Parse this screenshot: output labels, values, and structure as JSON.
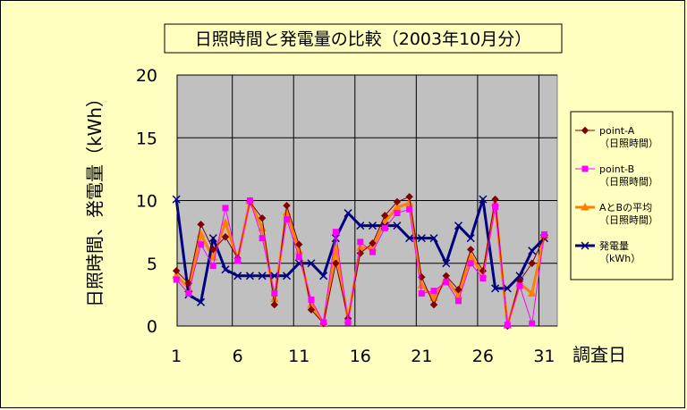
{
  "chart_data": {
    "type": "line",
    "title": "日照時間と発電量の比較（2003年10月分）",
    "ylabel": "日照時間、発電量（kWh）",
    "xlabel": "調査日",
    "ylim": [
      0,
      20
    ],
    "yticks": [
      0,
      5,
      10,
      15,
      20
    ],
    "xlim": [
      1,
      32
    ],
    "xticks": [
      1,
      6,
      11,
      16,
      21,
      26,
      31
    ],
    "grid": true,
    "legend_position": "right",
    "plot_background": "#c0c0c0",
    "x": [
      1,
      2,
      3,
      4,
      5,
      6,
      7,
      8,
      9,
      10,
      11,
      12,
      13,
      14,
      15,
      16,
      17,
      18,
      19,
      20,
      21,
      22,
      23,
      24,
      25,
      26,
      27,
      28,
      29,
      30,
      31
    ],
    "series": [
      {
        "name": "point-A",
        "name_line2": "（日照時間）",
        "color": "#800000",
        "marker": "diamond",
        "width": 1,
        "values": [
          4.4,
          3.4,
          8.1,
          6.1,
          7.1,
          5.4,
          9.9,
          8.6,
          1.7,
          9.6,
          6.5,
          1.3,
          0.2,
          5.0,
          0.6,
          5.8,
          6.6,
          8.8,
          9.9,
          10.3,
          3.9,
          1.7,
          4.0,
          2.9,
          6.1,
          4.4,
          10.1,
          0.0,
          3.6,
          5.0,
          7.1
        ]
      },
      {
        "name": "point-B",
        "name_line2": "（日照時間）",
        "color": "#ff00ff",
        "marker": "square",
        "width": 1,
        "values": [
          3.7,
          2.6,
          6.5,
          4.8,
          9.4,
          5.2,
          10.0,
          7.0,
          2.6,
          8.5,
          5.5,
          2.1,
          0.3,
          7.5,
          0.3,
          6.7,
          5.9,
          7.8,
          9.0,
          9.3,
          2.6,
          2.8,
          3.5,
          2.0,
          5.0,
          3.8,
          9.5,
          0.1,
          3.2,
          0.2,
          7.3
        ]
      },
      {
        "name": "AとBの平均",
        "name_line2": "（日照時間）",
        "color": "#ff8000",
        "marker": "triangle",
        "width": 3,
        "values": [
          4.05,
          3.0,
          7.3,
          5.45,
          8.25,
          5.3,
          9.95,
          7.8,
          2.15,
          9.05,
          6.0,
          1.7,
          0.25,
          6.25,
          0.45,
          6.25,
          6.25,
          8.3,
          9.45,
          9.8,
          3.25,
          2.25,
          3.75,
          2.45,
          5.55,
          4.1,
          9.8,
          0.05,
          3.4,
          2.6,
          7.2
        ]
      },
      {
        "name": "発電量",
        "name_line2": "（kWh）",
        "color": "#000080",
        "marker": "x",
        "width": 3,
        "values": [
          10.1,
          2.5,
          1.9,
          7.0,
          4.5,
          4.0,
          4.0,
          4.0,
          4.0,
          4.0,
          5.0,
          5.0,
          4.0,
          7.0,
          9.0,
          8.0,
          8.0,
          8.0,
          8.0,
          7.0,
          7.0,
          7.0,
          5.0,
          8.0,
          7.0,
          10.1,
          3.0,
          3.0,
          4.0,
          6.0,
          7.0
        ]
      }
    ]
  }
}
